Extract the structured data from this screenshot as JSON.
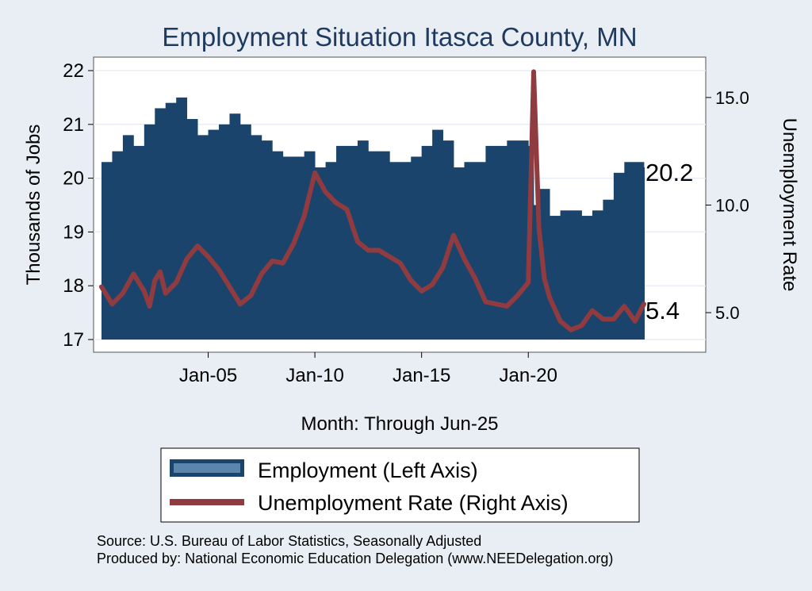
{
  "chart_data": {
    "type": "bar",
    "title": "Employment Situation Itasca  County, MN",
    "xlabel": "Month: Through Jun-25",
    "ylabel": "Thousands of Jobs",
    "y2label": "Unemployment Rate",
    "ylim": [
      17,
      22
    ],
    "y2lim": [
      3.75,
      16.25
    ],
    "yticks": [
      "17",
      "18",
      "19",
      "20",
      "21",
      "22"
    ],
    "y2ticks": [
      "5.0",
      "10.0",
      "15.0"
    ],
    "xticks": [
      {
        "label": "Jan-05",
        "year": 2005
      },
      {
        "label": "Jan-10",
        "year": 2010
      },
      {
        "label": "Jan-15",
        "year": 2015
      },
      {
        "label": "Jan-20",
        "year": 2020
      }
    ],
    "grid": true,
    "legend_position": "bottom",
    "colors": {
      "employment": "#1a446c",
      "unemployment": "#903b40",
      "background": "#e9eef4",
      "plot": "#ffffff"
    },
    "end_labels": {
      "employment": "20.2",
      "unemployment": "5.4"
    },
    "x_range": [
      "Jan-00",
      "Jun-25"
    ],
    "series": [
      {
        "name": "Employment (Left Axis)",
        "axis": "left",
        "type": "bar",
        "x": [
          "2000-01",
          "2000-07",
          "2001-01",
          "2001-07",
          "2002-01",
          "2002-07",
          "2003-01",
          "2003-07",
          "2004-01",
          "2004-07",
          "2005-01",
          "2005-07",
          "2006-01",
          "2006-07",
          "2007-01",
          "2007-07",
          "2008-01",
          "2008-07",
          "2009-01",
          "2009-07",
          "2010-01",
          "2010-07",
          "2011-01",
          "2011-07",
          "2012-01",
          "2012-07",
          "2013-01",
          "2013-07",
          "2014-01",
          "2014-07",
          "2015-01",
          "2015-07",
          "2016-01",
          "2016-07",
          "2017-01",
          "2017-07",
          "2018-01",
          "2018-07",
          "2019-01",
          "2019-07",
          "2020-01",
          "2020-04",
          "2020-07",
          "2021-01",
          "2021-07",
          "2022-01",
          "2022-07",
          "2023-01",
          "2023-07",
          "2024-01",
          "2024-07",
          "2025-01",
          "2025-06"
        ],
        "values": [
          20.3,
          20.5,
          20.8,
          20.6,
          21.0,
          21.3,
          21.4,
          21.5,
          21.1,
          20.8,
          20.9,
          21.0,
          21.2,
          21.0,
          20.8,
          20.7,
          20.5,
          20.4,
          20.4,
          20.5,
          20.2,
          20.3,
          20.6,
          20.6,
          20.7,
          20.5,
          20.5,
          20.3,
          20.3,
          20.4,
          20.6,
          20.9,
          20.7,
          20.2,
          20.3,
          20.3,
          20.6,
          20.6,
          20.7,
          20.7,
          20.6,
          19.5,
          19.8,
          19.3,
          19.4,
          19.4,
          19.3,
          19.4,
          19.6,
          20.1,
          20.3,
          20.3,
          20.2
        ]
      },
      {
        "name": "Unemployment Rate (Right Axis)",
        "axis": "right",
        "type": "line",
        "x": [
          "2000-01",
          "2000-07",
          "2001-01",
          "2001-07",
          "2002-01",
          "2002-04",
          "2002-07",
          "2002-10",
          "2003-01",
          "2003-07",
          "2004-01",
          "2004-07",
          "2005-01",
          "2005-07",
          "2006-01",
          "2006-07",
          "2007-01",
          "2007-07",
          "2008-01",
          "2008-07",
          "2009-01",
          "2009-07",
          "2010-01",
          "2010-07",
          "2011-01",
          "2011-07",
          "2012-01",
          "2012-07",
          "2013-01",
          "2013-07",
          "2014-01",
          "2014-07",
          "2015-01",
          "2015-07",
          "2016-01",
          "2016-07",
          "2017-01",
          "2017-07",
          "2018-01",
          "2018-07",
          "2019-01",
          "2019-07",
          "2020-01",
          "2020-04",
          "2020-07",
          "2020-10",
          "2021-01",
          "2021-07",
          "2022-01",
          "2022-07",
          "2023-01",
          "2023-07",
          "2024-01",
          "2024-07",
          "2025-01",
          "2025-06"
        ],
        "values": [
          6.2,
          5.4,
          5.9,
          6.8,
          6.0,
          5.3,
          6.5,
          6.9,
          5.9,
          6.4,
          7.5,
          8.1,
          7.6,
          7.0,
          6.2,
          5.4,
          5.8,
          6.8,
          7.4,
          7.3,
          8.2,
          9.5,
          11.5,
          10.6,
          10.1,
          9.8,
          8.3,
          7.9,
          7.9,
          7.6,
          7.3,
          6.5,
          6.0,
          6.3,
          7.1,
          8.6,
          7.5,
          6.6,
          5.5,
          5.4,
          5.3,
          5.8,
          6.4,
          16.2,
          8.9,
          6.6,
          5.7,
          4.6,
          4.2,
          4.4,
          5.1,
          4.7,
          4.7,
          5.3,
          4.6,
          5.4
        ]
      }
    ]
  },
  "footer": {
    "source": "Source: U.S. Bureau of Labor Statistics, Seasonally Adjusted",
    "produced_by": "Produced by: National Economic Education Delegation (www.NEEDelegation.org)"
  }
}
